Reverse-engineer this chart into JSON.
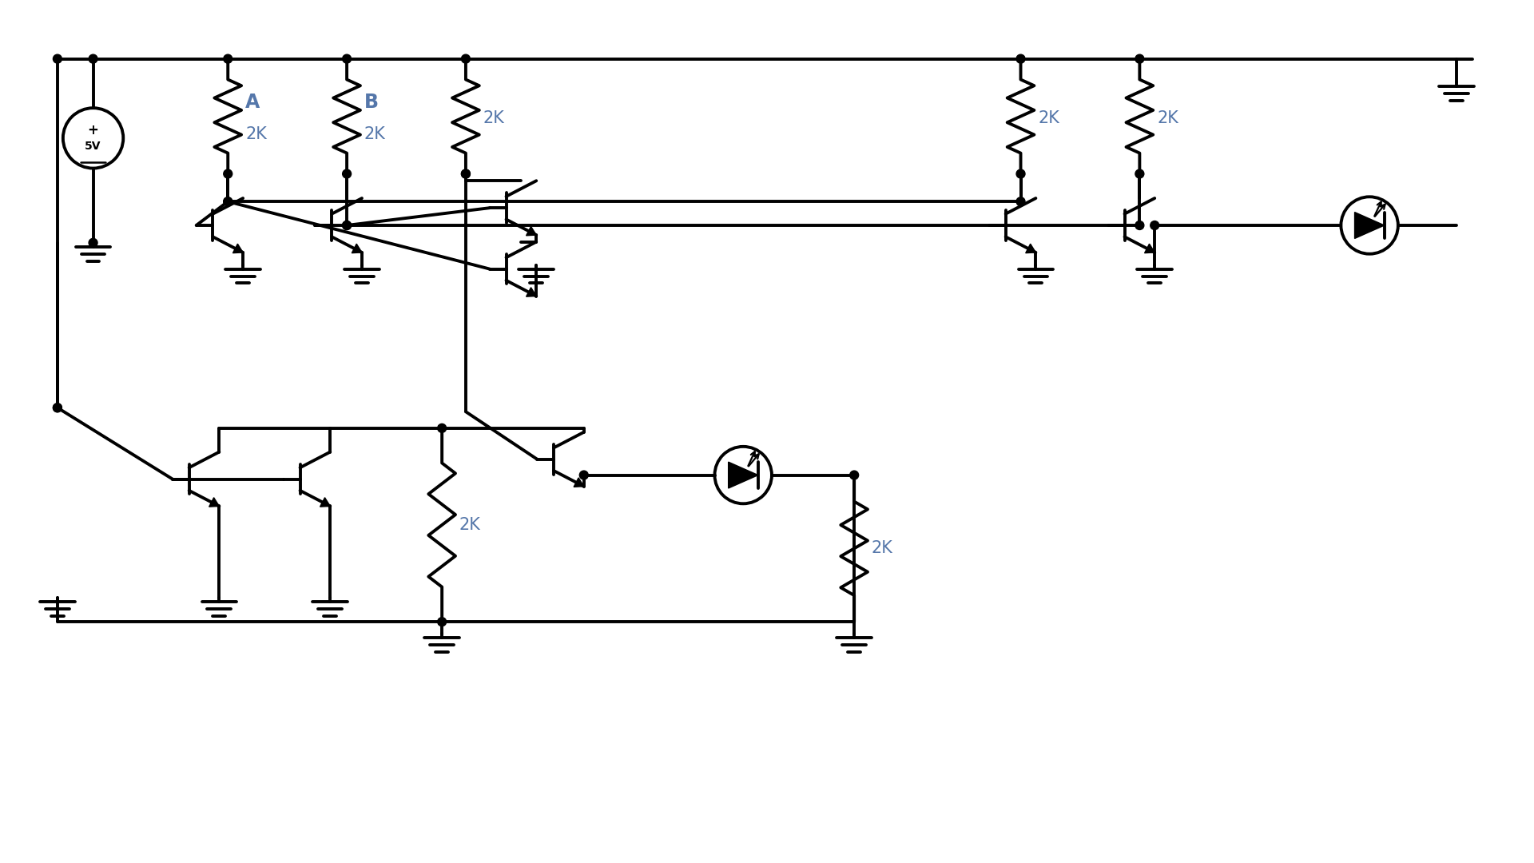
{
  "bg": "#ffffff",
  "lc": "#000000",
  "tc": "#5577aa",
  "lw": 2.8,
  "dot_r": 0.055,
  "resistor_2k": "2K",
  "label_A": "A",
  "label_B": "B",
  "vcc": "5V",
  "fs_input": 17,
  "fs_res": 15
}
